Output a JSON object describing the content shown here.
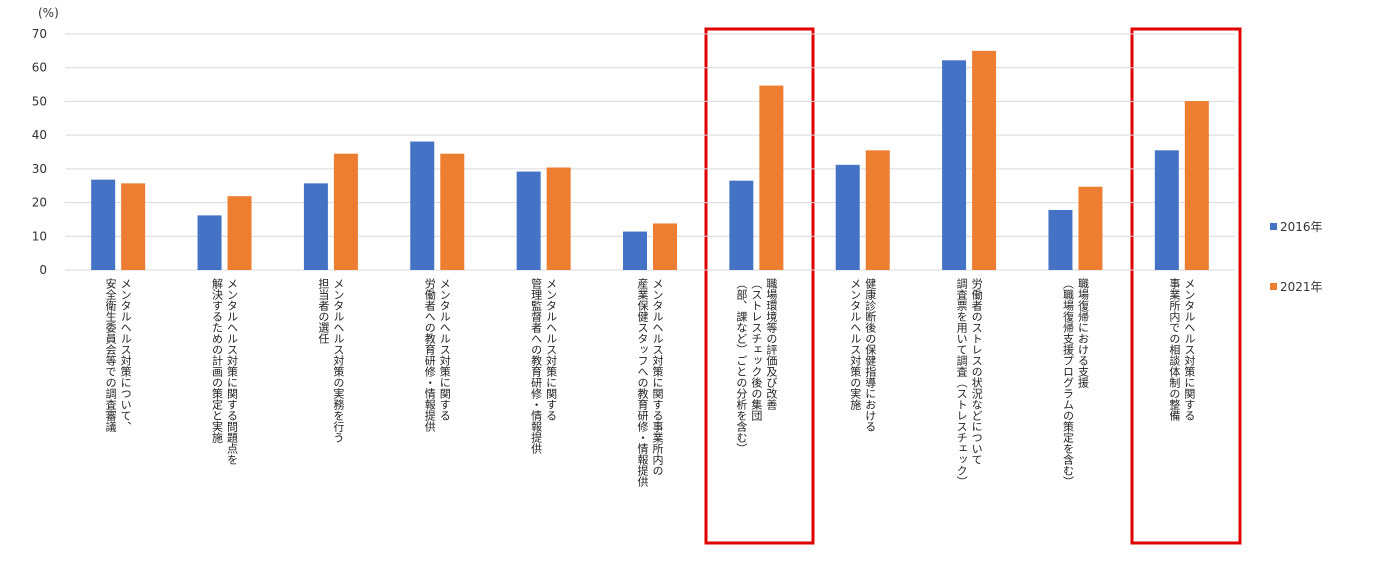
{
  "chart_data": {
    "type": "bar",
    "y_label": "(%)",
    "categories": [
      [
        "メンタルヘルス対策について、",
        "安全衛生委員会等での調査審議"
      ],
      [
        "メンタルヘルス対策に関する問題点を",
        "解決するための計画の策定と実施"
      ],
      [
        "メンタルヘルス対策の実務を行う",
        "担当者の選任"
      ],
      [
        "メンタルヘルス対策に関する",
        "労働者への教育研修・情報提供"
      ],
      [
        "メンタルヘルス対策に関する",
        "管理監督者への教育研修・情報提供"
      ],
      [
        "メンタルヘルス対策に関する事業所内の",
        "産業保健スタッフへの教育研修・情報提供"
      ],
      [
        "職場環境等の評価及び改善",
        "（ストレスチェック後の集団",
        "（部、課など）ごとの分析を含む）"
      ],
      [
        "健康診断後の保健指導における",
        "メンタルヘルス対策の実施"
      ],
      [
        "労働者のストレスの状況などについて",
        "調査票を用いて調査（ストレスチェック）"
      ],
      [
        "職場復帰における支援",
        "（職場復帰支援プログラムの策定を含む）"
      ],
      [
        "メンタルヘルス対策に関する",
        "事業所内での相談体制の整備"
      ]
    ],
    "series": [
      {
        "name": "2016年",
        "color": "#4472c4",
        "values": [
          26.8,
          16.2,
          25.7,
          38.1,
          29.2,
          11.4,
          26.5,
          31.2,
          62.2,
          17.8,
          35.5
        ]
      },
      {
        "name": "2021年",
        "color": "#ed7d31",
        "values": [
          25.7,
          21.9,
          34.5,
          34.5,
          30.4,
          13.8,
          54.7,
          35.5,
          65.0,
          24.7,
          50.1
        ]
      }
    ],
    "ylim": [
      0,
      70
    ],
    "yticks": [
      0,
      10,
      20,
      30,
      40,
      50,
      60,
      70
    ],
    "grid": true,
    "legend": "right"
  }
}
